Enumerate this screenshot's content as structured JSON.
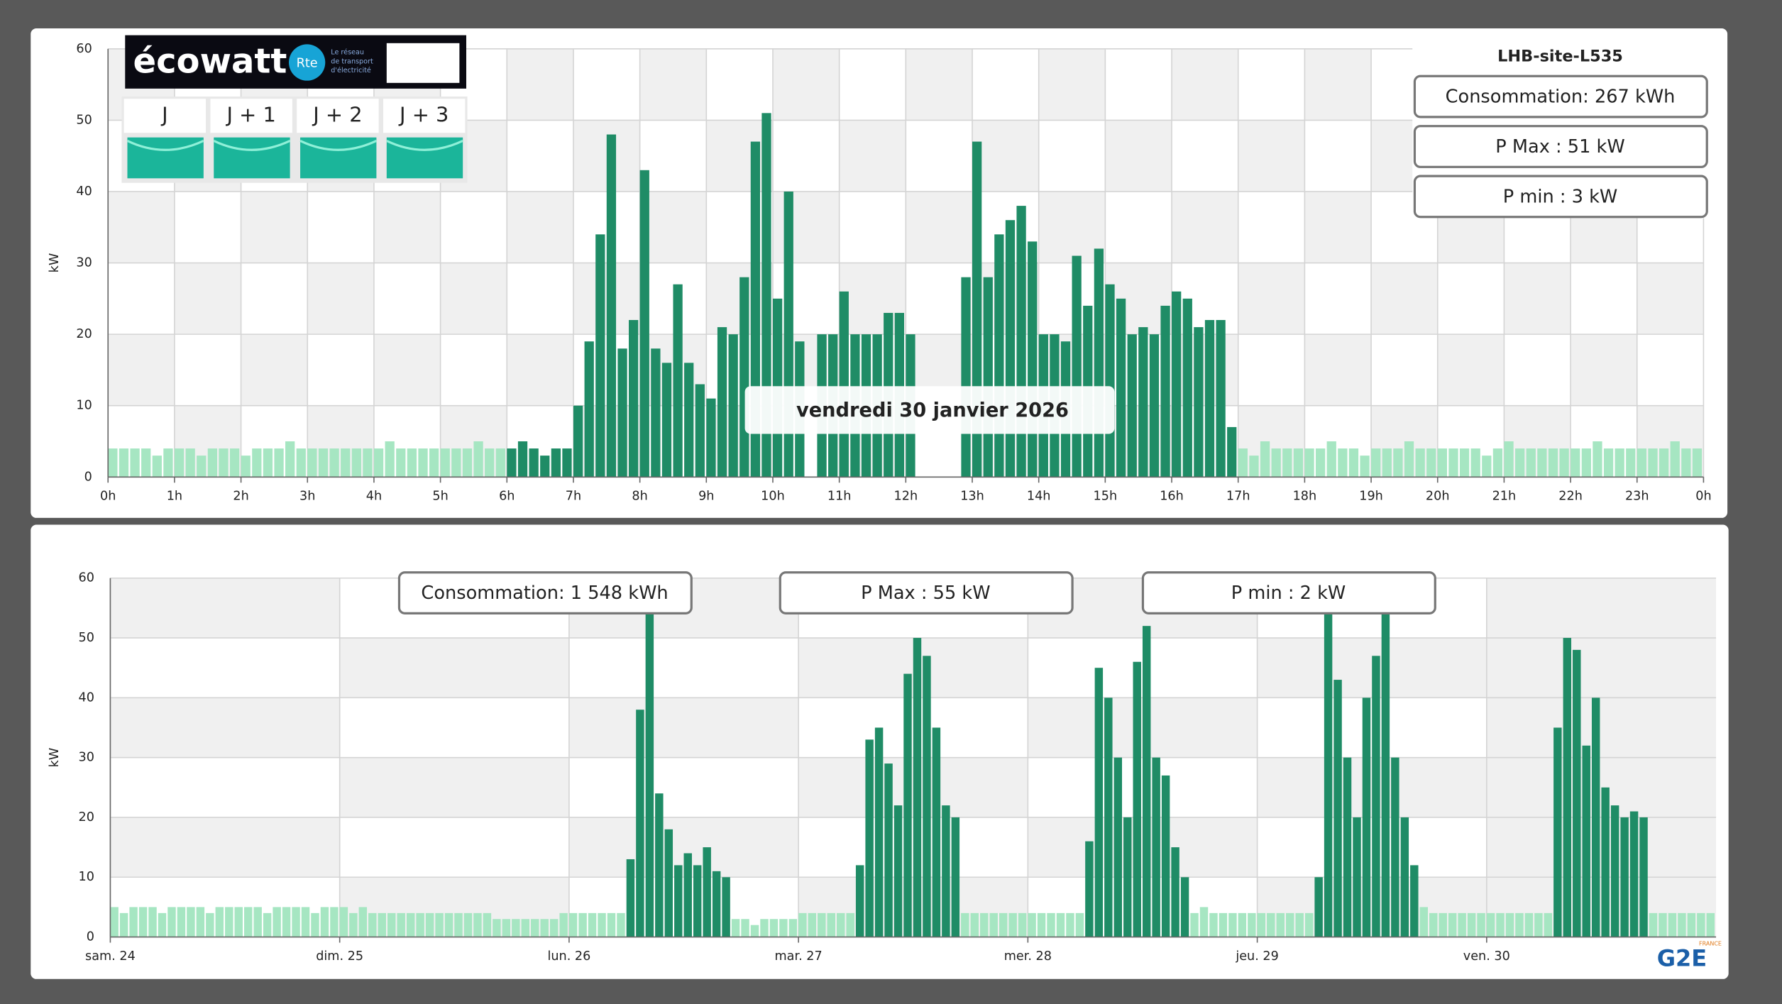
{
  "header": {
    "logo": "écowatt",
    "rte": "Rte",
    "rte_text": [
      "Le réseau",
      "de transport",
      "d'électricité"
    ],
    "days": [
      "J",
      "J + 1",
      "J + 2",
      "J + 3"
    ],
    "brand": "G2E",
    "brand_country": "FRANCE"
  },
  "chart_data": [
    {
      "type": "bar",
      "title": "LHB-site-L535",
      "subtitle": "vendredi 30 janvier 2026",
      "y_label": "kW",
      "annotations": [
        "Consommation: 267 kWh",
        "P Max :  51 kW",
        "P min : 3 kW"
      ],
      "xlim": [
        0,
        24
      ],
      "xticks": [
        {
          "value": 0,
          "label": "0h"
        },
        {
          "value": 1,
          "label": "1h"
        },
        {
          "value": 2,
          "label": "2h"
        },
        {
          "value": 3,
          "label": "3h"
        },
        {
          "value": 4,
          "label": "4h"
        },
        {
          "value": 5,
          "label": "5h"
        },
        {
          "value": 6,
          "label": "6h"
        },
        {
          "value": 7,
          "label": "7h"
        },
        {
          "value": 8,
          "label": "8h"
        },
        {
          "value": 9,
          "label": "9h"
        },
        {
          "value": 10,
          "label": "10h"
        },
        {
          "value": 11,
          "label": "11h"
        },
        {
          "value": 12,
          "label": "12h"
        },
        {
          "value": 13,
          "label": "13h"
        },
        {
          "value": 14,
          "label": "14h"
        },
        {
          "value": 15,
          "label": "15h"
        },
        {
          "value": 16,
          "label": "16h"
        },
        {
          "value": 17,
          "label": "17h"
        },
        {
          "value": 18,
          "label": "18h"
        },
        {
          "value": 19,
          "label": "19h"
        },
        {
          "value": 20,
          "label": "20h"
        },
        {
          "value": 21,
          "label": "21h"
        },
        {
          "value": 22,
          "label": "22h"
        },
        {
          "value": 23,
          "label": "23h"
        },
        {
          "value": 24,
          "label": "0h"
        }
      ],
      "ylim": [
        0,
        60
      ],
      "yticks": [
        0,
        10,
        20,
        30,
        40,
        50,
        60
      ],
      "grid": true,
      "series": [
        {
          "color": "#a6e6c2",
          "values": [
            4,
            4,
            4,
            4,
            3,
            4,
            4,
            4,
            3,
            4,
            4,
            4,
            3,
            4,
            4,
            4,
            5,
            4,
            4,
            4,
            4,
            4,
            4,
            4,
            4,
            5,
            4,
            4,
            4,
            4,
            4,
            4,
            4,
            5,
            4,
            4,
            null,
            null,
            null,
            null,
            null,
            null,
            null,
            null,
            null,
            null,
            null,
            null,
            null,
            null,
            null,
            null,
            null,
            null,
            null,
            null,
            null,
            null,
            null,
            null,
            null,
            null,
            null,
            null,
            null,
            null,
            null,
            null,
            null,
            null,
            null,
            null,
            null,
            null,
            null,
            null,
            null,
            null,
            null,
            null,
            null,
            null,
            null,
            null,
            null,
            null,
            null,
            null,
            null,
            null,
            null,
            null,
            null,
            null,
            null,
            null,
            null,
            null,
            null,
            null,
            null,
            null,
            4,
            3,
            5,
            4,
            4,
            4,
            4,
            4,
            5,
            4,
            4,
            3,
            4,
            4,
            4,
            5,
            4,
            4,
            4,
            4,
            4,
            4,
            3,
            4,
            5,
            4,
            4,
            4,
            4,
            4,
            4,
            4,
            5,
            4,
            4,
            4,
            4,
            4,
            4,
            5,
            4,
            4
          ]
        },
        {
          "color": "#1f8c66",
          "values": [
            null,
            null,
            null,
            null,
            null,
            null,
            null,
            null,
            null,
            null,
            null,
            null,
            null,
            null,
            null,
            null,
            null,
            null,
            null,
            null,
            null,
            null,
            null,
            null,
            null,
            null,
            null,
            null,
            null,
            null,
            null,
            null,
            null,
            null,
            null,
            null,
            4,
            5,
            4,
            3,
            4,
            4,
            10,
            19,
            34,
            48,
            18,
            22,
            43,
            18,
            16,
            27,
            16,
            13,
            11,
            21,
            20,
            28,
            47,
            51,
            25,
            40,
            19,
            null,
            20,
            20,
            26,
            20,
            20,
            20,
            23,
            23,
            20,
            null,
            null,
            null,
            null,
            28,
            47,
            28,
            34,
            36,
            38,
            33,
            20,
            20,
            19,
            31,
            24,
            32,
            27,
            25,
            20,
            21,
            20,
            24,
            26,
            25,
            21,
            22,
            22,
            7,
            null,
            null,
            null,
            null,
            null,
            null,
            null,
            null,
            null,
            null,
            null,
            null,
            null,
            null,
            null,
            null,
            null,
            null,
            null,
            null,
            null,
            null,
            null,
            null,
            null,
            null,
            null,
            null,
            null,
            null,
            null,
            null,
            null,
            null,
            null,
            null,
            null,
            null,
            null,
            null,
            null,
            null
          ]
        }
      ]
    },
    {
      "type": "bar",
      "y_label": "kW",
      "annotations": [
        "Consommation: 1 548 kWh",
        "P Max :  55 kW",
        "P min : 2 kW"
      ],
      "xlim": [
        0,
        168
      ],
      "xticks": [
        {
          "value": 0,
          "label": "sam. 24"
        },
        {
          "value": 24,
          "label": "dim. 25"
        },
        {
          "value": 48,
          "label": "lun. 26"
        },
        {
          "value": 72,
          "label": "mar. 27"
        },
        {
          "value": 96,
          "label": "mer. 28"
        },
        {
          "value": 120,
          "label": "jeu. 29"
        },
        {
          "value": 144,
          "label": "ven. 30"
        }
      ],
      "ylim": [
        0,
        60
      ],
      "yticks": [
        0,
        10,
        20,
        30,
        40,
        50,
        60
      ],
      "grid": true,
      "series": [
        {
          "color": "#a6e6c2",
          "values": [
            5,
            4,
            5,
            5,
            5,
            4,
            5,
            5,
            5,
            5,
            4,
            5,
            5,
            5,
            5,
            5,
            4,
            5,
            5,
            5,
            5,
            4,
            5,
            5,
            5,
            4,
            5,
            4,
            4,
            4,
            4,
            4,
            4,
            4,
            4,
            4,
            4,
            4,
            4,
            4,
            3,
            3,
            3,
            3,
            3,
            3,
            3,
            4,
            4,
            4,
            4,
            4,
            4,
            4,
            null,
            null,
            null,
            null,
            null,
            null,
            null,
            null,
            null,
            null,
            null,
            3,
            3,
            2,
            3,
            3,
            3,
            3,
            4,
            4,
            4,
            4,
            4,
            4,
            null,
            null,
            null,
            null,
            null,
            null,
            null,
            null,
            null,
            null,
            null,
            4,
            4,
            4,
            4,
            4,
            4,
            4,
            4,
            4,
            4,
            4,
            4,
            4,
            null,
            null,
            null,
            null,
            null,
            null,
            null,
            null,
            null,
            null,
            null,
            4,
            5,
            4,
            4,
            4,
            4,
            4,
            4,
            4,
            4,
            4,
            4,
            4,
            null,
            null,
            null,
            null,
            null,
            null,
            null,
            null,
            null,
            null,
            null,
            5,
            4,
            4,
            4,
            4,
            4,
            4,
            4,
            4,
            4,
            4,
            4,
            4,
            4,
            null,
            null,
            null,
            null,
            null,
            null,
            null,
            null,
            null,
            null,
            4,
            4,
            4,
            4,
            4,
            4,
            4
          ]
        },
        {
          "color": "#1f8c66",
          "values": [
            null,
            null,
            null,
            null,
            null,
            null,
            null,
            null,
            null,
            null,
            null,
            null,
            null,
            null,
            null,
            null,
            null,
            null,
            null,
            null,
            null,
            null,
            null,
            null,
            null,
            null,
            null,
            null,
            null,
            null,
            null,
            null,
            null,
            null,
            null,
            null,
            null,
            null,
            null,
            null,
            null,
            null,
            null,
            null,
            null,
            null,
            null,
            null,
            null,
            null,
            null,
            null,
            null,
            null,
            13,
            38,
            55,
            24,
            18,
            12,
            14,
            12,
            15,
            11,
            10,
            null,
            null,
            null,
            null,
            null,
            null,
            null,
            null,
            null,
            null,
            null,
            null,
            null,
            12,
            33,
            35,
            29,
            22,
            44,
            50,
            47,
            35,
            22,
            20,
            null,
            null,
            null,
            null,
            null,
            null,
            null,
            null,
            null,
            null,
            null,
            null,
            null,
            16,
            45,
            40,
            30,
            20,
            46,
            52,
            30,
            27,
            15,
            10,
            null,
            null,
            null,
            null,
            null,
            null,
            null,
            null,
            null,
            null,
            null,
            null,
            null,
            10,
            54,
            43,
            30,
            20,
            40,
            47,
            55,
            30,
            20,
            12,
            null,
            null,
            null,
            null,
            null,
            null,
            null,
            null,
            null,
            null,
            null,
            null,
            null,
            null,
            35,
            50,
            48,
            32,
            40,
            25,
            22,
            20,
            21,
            20,
            null,
            null,
            null,
            null,
            null,
            null,
            null
          ]
        }
      ]
    }
  ]
}
